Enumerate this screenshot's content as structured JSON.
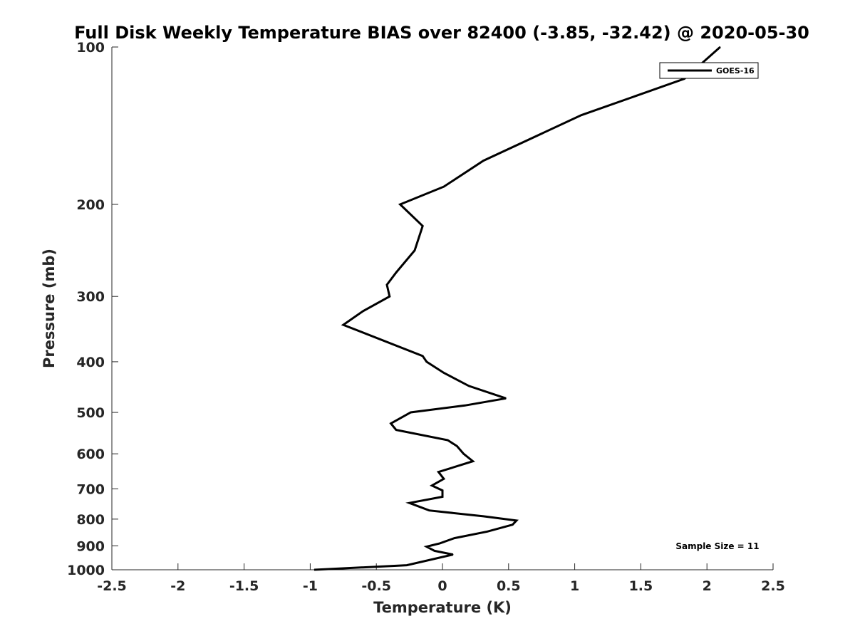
{
  "chart_data": {
    "type": "line",
    "title": "Full Disk Weekly Temperature BIAS over 82400 (-3.85, -32.42) @ 2020-05-30",
    "xlabel": "Temperature (K)",
    "ylabel": "Pressure (mb)",
    "xlim": [
      -2.5,
      2.5
    ],
    "ylim": [
      1000,
      100
    ],
    "yscale": "log",
    "y_reversed": true,
    "grid": false,
    "legend_position": "top-right",
    "x_ticks": [
      -2.5,
      -2,
      -1.5,
      -1,
      -0.5,
      0,
      0.5,
      1,
      1.5,
      2,
      2.5
    ],
    "x_tick_labels": [
      "-2.5",
      "-2",
      "-1.5",
      "-1",
      "-0.5",
      "0",
      "0.5",
      "1",
      "1.5",
      "2",
      "2.5"
    ],
    "y_ticks": [
      100,
      200,
      300,
      400,
      500,
      600,
      700,
      800,
      900,
      1000
    ],
    "y_tick_labels": [
      "100",
      "200",
      "300",
      "400",
      "500",
      "600",
      "700",
      "800",
      "900",
      "1000"
    ],
    "annotation": "Sample Size = 11",
    "series": [
      {
        "name": "GOES-16",
        "color": "#000000",
        "points": [
          {
            "x": 2.1,
            "y": 100
          },
          {
            "x": 1.83,
            "y": 115
          },
          {
            "x": 1.05,
            "y": 135
          },
          {
            "x": 0.31,
            "y": 165
          },
          {
            "x": 0.01,
            "y": 185
          },
          {
            "x": -0.32,
            "y": 200
          },
          {
            "x": -0.15,
            "y": 220
          },
          {
            "x": -0.21,
            "y": 245
          },
          {
            "x": -0.35,
            "y": 270
          },
          {
            "x": -0.42,
            "y": 285
          },
          {
            "x": -0.4,
            "y": 300
          },
          {
            "x": -0.6,
            "y": 320
          },
          {
            "x": -0.75,
            "y": 340
          },
          {
            "x": -0.15,
            "y": 390
          },
          {
            "x": -0.12,
            "y": 400
          },
          {
            "x": 0.01,
            "y": 420
          },
          {
            "x": 0.2,
            "y": 445
          },
          {
            "x": 0.48,
            "y": 470
          },
          {
            "x": 0.17,
            "y": 485
          },
          {
            "x": -0.24,
            "y": 500
          },
          {
            "x": -0.39,
            "y": 525
          },
          {
            "x": -0.35,
            "y": 540
          },
          {
            "x": 0.04,
            "y": 565
          },
          {
            "x": 0.11,
            "y": 580
          },
          {
            "x": 0.16,
            "y": 600
          },
          {
            "x": 0.23,
            "y": 620
          },
          {
            "x": -0.03,
            "y": 650
          },
          {
            "x": 0.01,
            "y": 670
          },
          {
            "x": -0.08,
            "y": 690
          },
          {
            "x": 0.0,
            "y": 705
          },
          {
            "x": 0.0,
            "y": 725
          },
          {
            "x": -0.25,
            "y": 745
          },
          {
            "x": -0.1,
            "y": 770
          },
          {
            "x": 0.31,
            "y": 790
          },
          {
            "x": 0.56,
            "y": 805
          },
          {
            "x": 0.53,
            "y": 820
          },
          {
            "x": 0.34,
            "y": 845
          },
          {
            "x": 0.09,
            "y": 870
          },
          {
            "x": -0.02,
            "y": 890
          },
          {
            "x": -0.12,
            "y": 903
          },
          {
            "x": -0.06,
            "y": 920
          },
          {
            "x": 0.08,
            "y": 935
          },
          {
            "x": -0.27,
            "y": 980
          },
          {
            "x": -0.97,
            "y": 1000
          }
        ]
      }
    ]
  }
}
